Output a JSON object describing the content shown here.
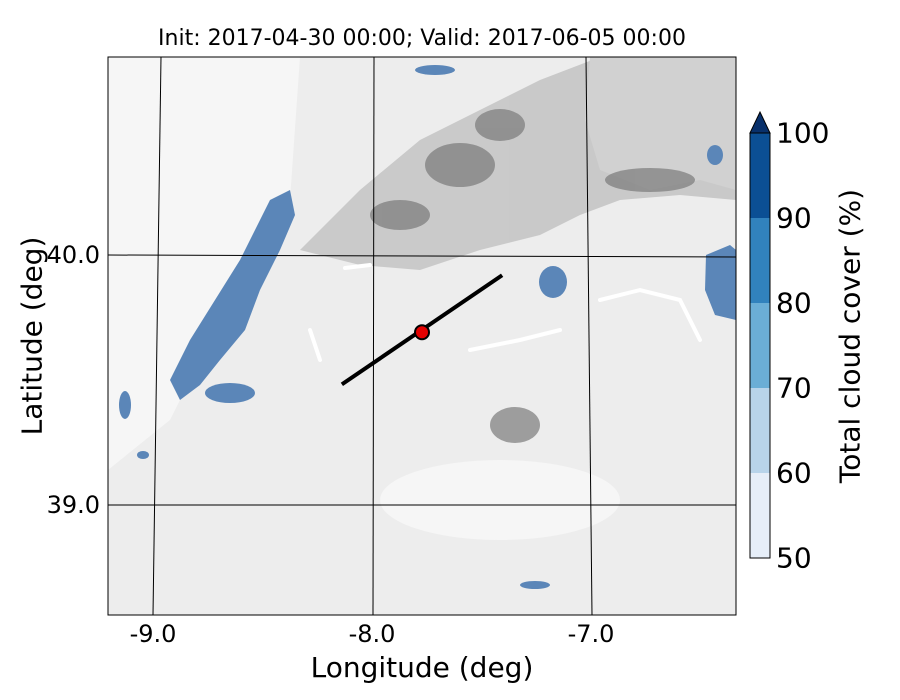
{
  "title": "Init: 2017-04-30 00:00; Valid: 2017-06-05 00:00",
  "xlabel": "Longitude (deg)",
  "ylabel": "Latitude (deg)",
  "x_ticks": [
    "-9.0",
    "-8.0",
    "-7.0"
  ],
  "y_ticks": [
    "40.0",
    "39.0"
  ],
  "colorbar": {
    "label": "Total cloud cover (%)",
    "ticks": [
      "50",
      "60",
      "70",
      "80",
      "90",
      "100"
    ],
    "colors": [
      "#e6eef8",
      "#b8d4ea",
      "#6baed6",
      "#3182bd",
      "#0b4f94"
    ],
    "extend_color": "#08306b"
  },
  "map": {
    "xlim": [
      -9.2,
      -6.3
    ],
    "ylim": [
      38.55,
      40.8
    ],
    "background": "#ececec",
    "terrain_dark": "#5a5a5a",
    "cloud_color": "#5b86b8",
    "graticule_lons": [
      -9.0,
      -8.0,
      -7.0
    ],
    "graticule_lats": [
      40.0,
      39.0
    ],
    "transect": {
      "start": [
        -8.12,
        39.48
      ],
      "end": [
        -7.38,
        39.92
      ]
    },
    "marker": {
      "lon": -7.75,
      "lat": 39.69,
      "color": "#e30000"
    }
  }
}
